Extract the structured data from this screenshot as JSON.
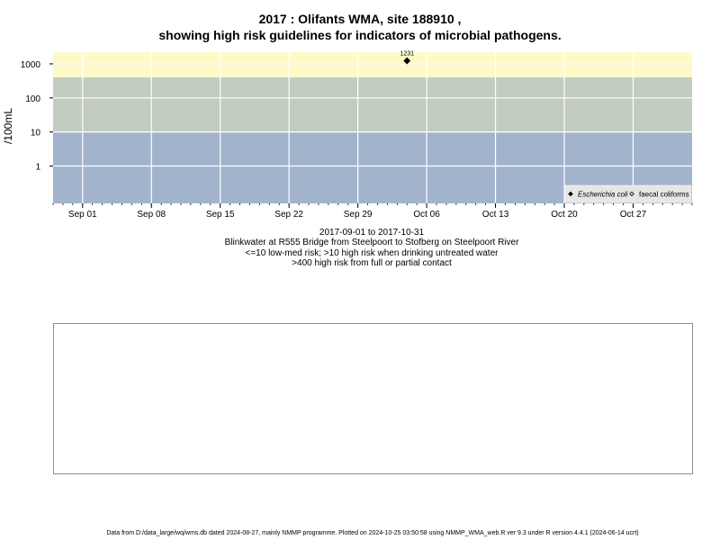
{
  "title_line1": "2017 : Olifants WMA, site 188910 ,",
  "title_line2": "showing high risk guidelines for indicators of microbial pathogens.",
  "subtitles": [
    "2017-09-01 to 2017-10-31",
    "Blinkwater at R555 Bridge from Steelpoort to Stofberg on Steelpoort River",
    "<=10 low-med risk; >10 high risk when drinking untreated water",
    ">400 high risk from full or partial contact"
  ],
  "footnote": "Data from D:/data_large/wq/wms.db dated 2024-08-27, mainly NMMP programme. Plotted on 2024-10-25 03:50:58 using NMMP_WMA_web.R ver 9.3 under R version 4.4.1 (2024-06-14 ucrt)",
  "chart_data": {
    "type": "scatter",
    "ylabel": "/100mL",
    "y_scale": "log",
    "y_ticks": [
      1,
      10,
      100,
      1000
    ],
    "y_tick_labels": [
      "1",
      "10",
      "100",
      "1000"
    ],
    "ylim": [
      0.08,
      2200
    ],
    "xlim": [
      "2017-08-29",
      "2017-11-02"
    ],
    "x_ticks": [
      "2017-09-01",
      "2017-09-08",
      "2017-09-15",
      "2017-09-22",
      "2017-09-29",
      "2017-10-06",
      "2017-10-13",
      "2017-10-20",
      "2017-10-27"
    ],
    "x_tick_labels": [
      "Sep 01",
      "Sep 08",
      "Sep 15",
      "Sep 22",
      "Sep 29",
      "Oct 06",
      "Oct 13",
      "Oct 20",
      "Oct 27"
    ],
    "grid": true,
    "risk_bands": [
      {
        "from": 0.08,
        "to": 10,
        "color": "#a2b3cc"
      },
      {
        "from": 10,
        "to": 400,
        "color": "#c3ccc0"
      },
      {
        "from": 400,
        "to": 2200,
        "color": "#fef9c8"
      }
    ],
    "series": [
      {
        "name": "Escherichia coli",
        "marker": "filled-diamond",
        "color": "#000000",
        "points": [
          {
            "x": "2017-10-04",
            "y": 1231,
            "label": "1231"
          }
        ]
      },
      {
        "name": "faecal coliforms",
        "marker": "open-diamond",
        "color": "#000000",
        "points": []
      }
    ],
    "legend_position": "bottom-right"
  }
}
